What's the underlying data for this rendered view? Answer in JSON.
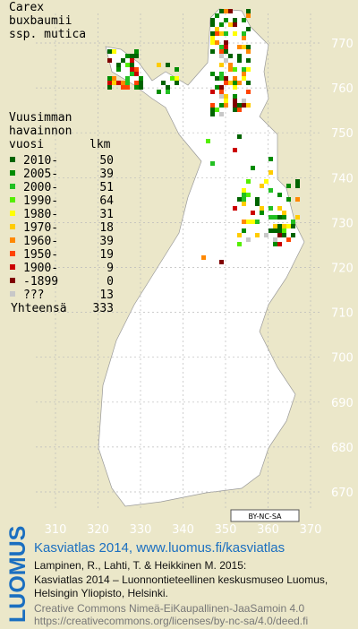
{
  "title": [
    "Carex",
    "buxbaumii",
    "ssp. mutica"
  ],
  "legend": {
    "heading": [
      "Vuusimman",
      "havainnon"
    ],
    "col_year": "vuosi",
    "col_count": "lkm",
    "rows": [
      {
        "label": "2010-",
        "count": 50,
        "color": "#006400"
      },
      {
        "label": "2005-",
        "count": 39,
        "color": "#008c00"
      },
      {
        "label": "2000-",
        "count": 51,
        "color": "#22c022"
      },
      {
        "label": "1990-",
        "count": 64,
        "color": "#55ee00"
      },
      {
        "label": "1980-",
        "count": 31,
        "color": "#ffff00"
      },
      {
        "label": "1970-",
        "count": 18,
        "color": "#ffcc00"
      },
      {
        "label": "1960-",
        "count": 39,
        "color": "#ff8800"
      },
      {
        "label": "1950-",
        "count": 19,
        "color": "#ff4400"
      },
      {
        "label": "1900-",
        "count": 9,
        "color": "#cc0000"
      },
      {
        "label": "-1899",
        "count": 0,
        "color": "#800000"
      },
      {
        "label": "???",
        "count": 13,
        "color": "#c8c8c8"
      }
    ],
    "total_label": "Yhteensä",
    "total": 333
  },
  "grid": {
    "y_labels": [
      "770",
      "760",
      "750",
      "740",
      "730",
      "720",
      "710",
      "700",
      "690",
      "680",
      "670"
    ],
    "x_labels": [
      "310",
      "320",
      "330",
      "340",
      "350",
      "360",
      "370"
    ]
  },
  "license_badge": "BY-NC-SA",
  "footer": {
    "logo": "LUOMUS",
    "headline": "Kasviatlas 2014, www.luomus.fi/kasviatlas",
    "citation": [
      "Lampinen, R., Lahti, T. & Heikkinen M. 2015:",
      "Kasviatlas 2014 – Luonnontieteellinen keskusmuseo Luomus,",
      "Helsingin Yliopisto, Helsinki."
    ],
    "license": [
      "Creative Commons Nimeä-EiKaupallinen-JaaSamoin 4.0",
      "https://creativecommons.org/licenses/by-nc-sa/4.0/deed.fi"
    ]
  }
}
